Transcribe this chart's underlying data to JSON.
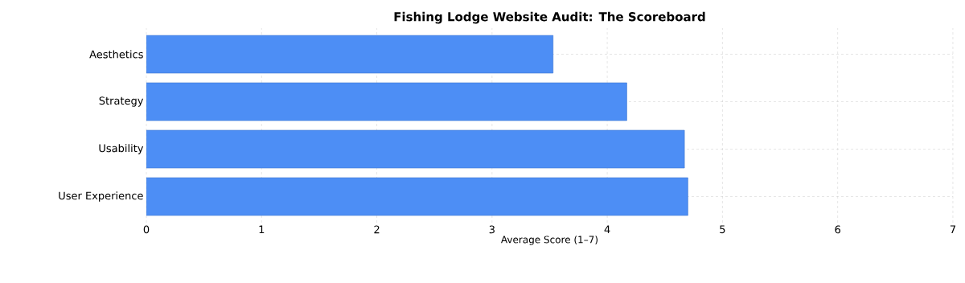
{
  "chart_data": {
    "type": "bar",
    "orientation": "horizontal",
    "title": "Fishing Lodge Website Audit: The Scoreboard",
    "xlabel": "Average Score (1–7)",
    "categories": [
      "Aesthetics",
      "Strategy",
      "Usability",
      "User Experience"
    ],
    "values": [
      3.53,
      4.17,
      4.67,
      4.7
    ],
    "color": "#4d8ef5",
    "xlim": [
      0,
      7
    ],
    "xticks": [
      0,
      1,
      2,
      3,
      4,
      5,
      6,
      7
    ],
    "grid": true
  }
}
